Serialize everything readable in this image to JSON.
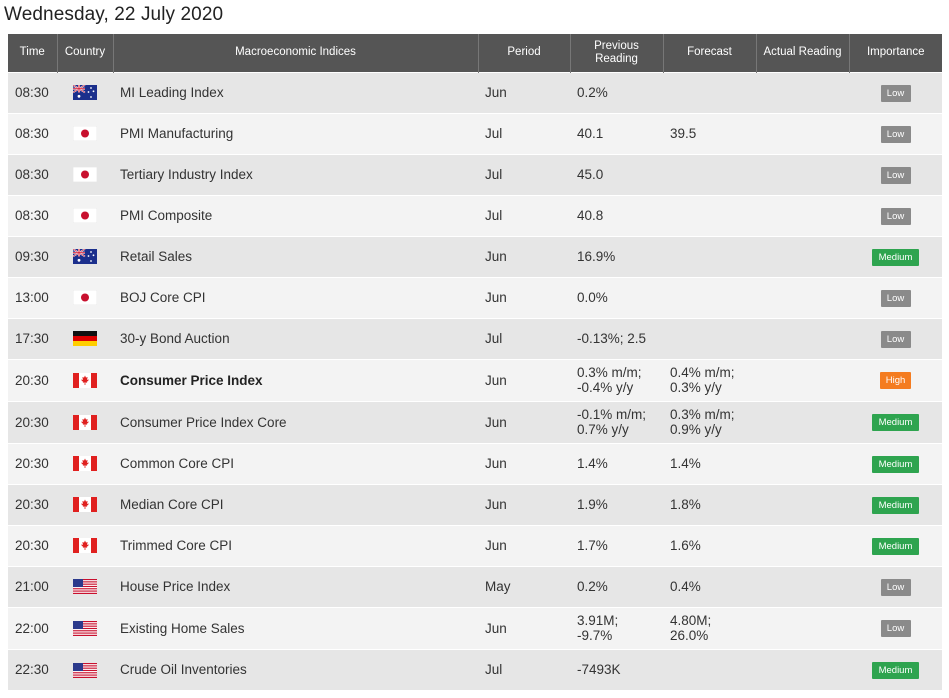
{
  "date_title": "Wednesday, 22 July 2020",
  "columns": {
    "time": "Time",
    "country": "Country",
    "index": "Macroeconomic Indices",
    "period": "Period",
    "previous": "Previous Reading",
    "forecast": "Forecast",
    "actual": "Actual Reading",
    "importance": "Importance"
  },
  "colors": {
    "header_bg": "#555555",
    "row_odd": "#e6e6e6",
    "row_even": "#f3f3f3",
    "low": "#8a8a8a",
    "medium": "#2ea44f",
    "high": "#f47c20"
  },
  "rows": [
    {
      "time": "08:30",
      "flag": "australia-flag-icon",
      "index": "MI Leading Index",
      "bold": false,
      "period": "Jun",
      "previous": [
        "0.2%"
      ],
      "forecast": [],
      "actual": "",
      "importance": "Low",
      "level": "low"
    },
    {
      "time": "08:30",
      "flag": "japan-flag-icon",
      "index": "PMI Manufacturing",
      "bold": false,
      "period": "Jul",
      "previous": [
        "40.1"
      ],
      "forecast": [
        "39.5"
      ],
      "actual": "",
      "importance": "Low",
      "level": "low"
    },
    {
      "time": "08:30",
      "flag": "japan-flag-icon",
      "index": "Tertiary Industry Index",
      "bold": false,
      "period": "Jul",
      "previous": [
        "45.0"
      ],
      "forecast": [],
      "actual": "",
      "importance": "Low",
      "level": "low"
    },
    {
      "time": "08:30",
      "flag": "japan-flag-icon",
      "index": "PMI Composite",
      "bold": false,
      "period": "Jul",
      "previous": [
        "40.8"
      ],
      "forecast": [],
      "actual": "",
      "importance": "Low",
      "level": "low"
    },
    {
      "time": "09:30",
      "flag": "australia-flag-icon",
      "index": "Retail Sales",
      "bold": false,
      "period": "Jun",
      "previous": [
        "16.9%"
      ],
      "forecast": [],
      "actual": "",
      "importance": "Medium",
      "level": "medium"
    },
    {
      "time": "13:00",
      "flag": "japan-flag-icon",
      "index": "BOJ Core CPI",
      "bold": false,
      "period": "Jun",
      "previous": [
        "0.0%"
      ],
      "forecast": [],
      "actual": "",
      "importance": "Low",
      "level": "low"
    },
    {
      "time": "17:30",
      "flag": "germany-flag-icon",
      "index": "30-y Bond Auction",
      "bold": false,
      "period": "Jul",
      "previous": [
        "-0.13%; 2.5"
      ],
      "forecast": [],
      "actual": "",
      "importance": "Low",
      "level": "low"
    },
    {
      "time": "20:30",
      "flag": "canada-flag-icon",
      "index": "Consumer Price Index",
      "bold": true,
      "period": "Jun",
      "previous": [
        "0.3% m/m;",
        "-0.4% y/y"
      ],
      "forecast": [
        "0.4% m/m;",
        "0.3% y/y"
      ],
      "actual": "",
      "importance": "High",
      "level": "high"
    },
    {
      "time": "20:30",
      "flag": "canada-flag-icon",
      "index": "Consumer Price Index Core",
      "bold": false,
      "period": "Jun",
      "previous": [
        "-0.1% m/m;",
        "0.7% y/y"
      ],
      "forecast": [
        "0.3% m/m;",
        "0.9% y/y"
      ],
      "actual": "",
      "importance": "Medium",
      "level": "medium"
    },
    {
      "time": "20:30",
      "flag": "canada-flag-icon",
      "index": "Common Core CPI",
      "bold": false,
      "period": "Jun",
      "previous": [
        "1.4%"
      ],
      "forecast": [
        "1.4%"
      ],
      "actual": "",
      "importance": "Medium",
      "level": "medium"
    },
    {
      "time": "20:30",
      "flag": "canada-flag-icon",
      "index": "Median Core CPI",
      "bold": false,
      "period": "Jun",
      "previous": [
        "1.9%"
      ],
      "forecast": [
        "1.8%"
      ],
      "actual": "",
      "importance": "Medium",
      "level": "medium"
    },
    {
      "time": "20:30",
      "flag": "canada-flag-icon",
      "index": "Trimmed Core CPI",
      "bold": false,
      "period": "Jun",
      "previous": [
        "1.7%"
      ],
      "forecast": [
        "1.6%"
      ],
      "actual": "",
      "importance": "Medium",
      "level": "medium"
    },
    {
      "time": "21:00",
      "flag": "usa-flag-icon",
      "index": "House Price Index",
      "bold": false,
      "period": "May",
      "previous": [
        "0.2%"
      ],
      "forecast": [
        "0.4%"
      ],
      "actual": "",
      "importance": "Low",
      "level": "low"
    },
    {
      "time": "22:00",
      "flag": "usa-flag-icon",
      "index": "Existing Home Sales",
      "bold": false,
      "period": "Jun",
      "previous": [
        "3.91M;",
        "-9.7%"
      ],
      "forecast": [
        "4.80M;",
        "26.0%"
      ],
      "actual": "",
      "importance": "Low",
      "level": "low"
    },
    {
      "time": "22:30",
      "flag": "usa-flag-icon",
      "index": "Crude Oil Inventories",
      "bold": false,
      "period": "Jul",
      "previous": [
        "-7493K"
      ],
      "forecast": [],
      "actual": "",
      "importance": "Medium",
      "level": "medium"
    }
  ]
}
